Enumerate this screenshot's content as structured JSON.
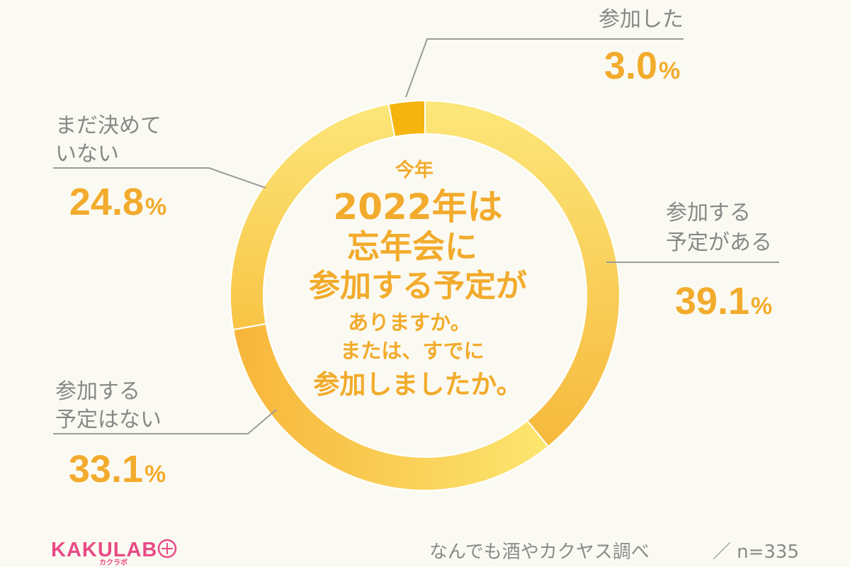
{
  "chart_data": {
    "type": "pie",
    "donut": true,
    "title_lines": [
      "今年",
      "2022年は",
      "忘年会に",
      "参加する予定が",
      "ありますか。",
      "または、すでに",
      "参加しましたか。"
    ],
    "slices": [
      {
        "label_lines": [
          "参加した"
        ],
        "value": 3.0,
        "color": "#f5b40e"
      },
      {
        "label_lines": [
          "参加する",
          "予定がある"
        ],
        "value": 39.1,
        "color": "#fbd54c"
      },
      {
        "label_lines": [
          "参加する",
          "予定はない"
        ],
        "value": 33.1,
        "color": "#f9bf3e"
      },
      {
        "label_lines": [
          "まだ決めて",
          "いない"
        ],
        "value": 24.8,
        "color": "#fadd62"
      }
    ],
    "unit": "%"
  },
  "footer": {
    "source": "なんでも酒やカクヤス調べ",
    "sample": "／ n=335"
  },
  "logo": {
    "name": "KAKULAB",
    "sub": "カクラボ"
  },
  "colors": {
    "accent": "#f2ab2c",
    "label_gray": "#888888",
    "background": "#fbfaf2",
    "logo_pink": "#e84b86"
  }
}
